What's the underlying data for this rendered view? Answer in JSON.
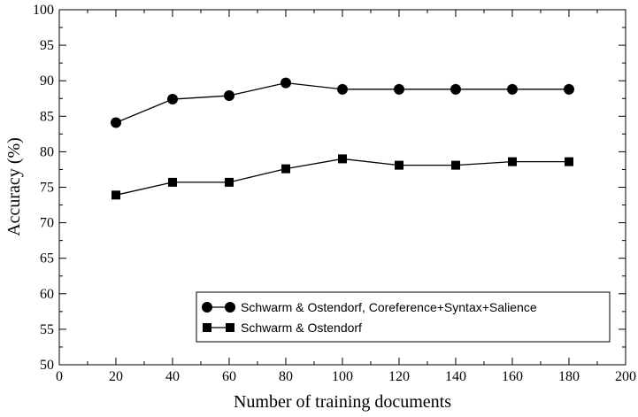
{
  "chart_data": {
    "type": "line",
    "xlabel": "Number of training documents",
    "ylabel": "Accuracy (%)",
    "xlim": [
      0,
      200
    ],
    "ylim": [
      50,
      100
    ],
    "x_ticks": [
      0,
      20,
      40,
      60,
      80,
      100,
      120,
      140,
      160,
      180,
      200
    ],
    "y_ticks": [
      50,
      55,
      60,
      65,
      70,
      75,
      80,
      85,
      90,
      95,
      100
    ],
    "grid": false,
    "legend_position": "bottom-right",
    "series": [
      {
        "name": "Schwarm & Ostendorf, Coreference+Syntax+Salience",
        "marker": "circle",
        "color": "#000000",
        "x": [
          20,
          40,
          60,
          80,
          100,
          120,
          140,
          160,
          180
        ],
        "y": [
          84.1,
          87.4,
          87.9,
          89.7,
          88.8,
          88.8,
          88.8,
          88.8,
          88.8
        ]
      },
      {
        "name": "Schwarm & Ostendorf",
        "marker": "square",
        "color": "#000000",
        "x": [
          20,
          40,
          60,
          80,
          100,
          120,
          140,
          160,
          180
        ],
        "y": [
          73.9,
          75.7,
          75.7,
          77.6,
          79.0,
          78.1,
          78.1,
          78.6,
          78.6
        ]
      }
    ]
  }
}
